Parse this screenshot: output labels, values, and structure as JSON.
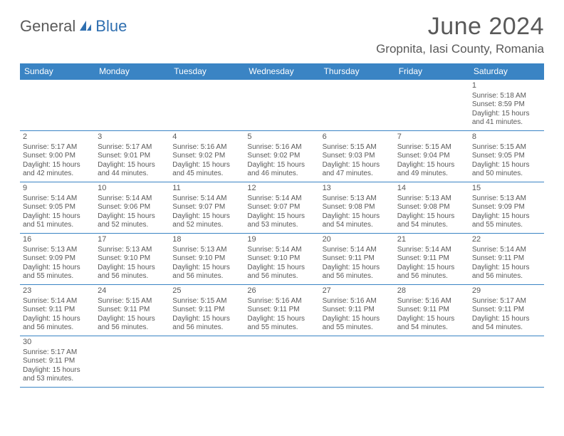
{
  "logo": {
    "text_a": "General",
    "text_b": "Blue"
  },
  "title": "June 2024",
  "location": "Gropnita, Iasi County, Romania",
  "colors": {
    "header_bg": "#3a84c4",
    "header_fg": "#ffffff",
    "text": "#595959",
    "rule": "#3a84c4",
    "logo_gray": "#5a5a5a",
    "logo_blue": "#2f6fb0"
  },
  "day_headers": [
    "Sunday",
    "Monday",
    "Tuesday",
    "Wednesday",
    "Thursday",
    "Friday",
    "Saturday"
  ],
  "weeks": [
    [
      null,
      null,
      null,
      null,
      null,
      null,
      {
        "n": "1",
        "sr": "Sunrise: 5:18 AM",
        "ss": "Sunset: 8:59 PM",
        "dl": "Daylight: 15 hours and 41 minutes."
      }
    ],
    [
      {
        "n": "2",
        "sr": "Sunrise: 5:17 AM",
        "ss": "Sunset: 9:00 PM",
        "dl": "Daylight: 15 hours and 42 minutes."
      },
      {
        "n": "3",
        "sr": "Sunrise: 5:17 AM",
        "ss": "Sunset: 9:01 PM",
        "dl": "Daylight: 15 hours and 44 minutes."
      },
      {
        "n": "4",
        "sr": "Sunrise: 5:16 AM",
        "ss": "Sunset: 9:02 PM",
        "dl": "Daylight: 15 hours and 45 minutes."
      },
      {
        "n": "5",
        "sr": "Sunrise: 5:16 AM",
        "ss": "Sunset: 9:02 PM",
        "dl": "Daylight: 15 hours and 46 minutes."
      },
      {
        "n": "6",
        "sr": "Sunrise: 5:15 AM",
        "ss": "Sunset: 9:03 PM",
        "dl": "Daylight: 15 hours and 47 minutes."
      },
      {
        "n": "7",
        "sr": "Sunrise: 5:15 AM",
        "ss": "Sunset: 9:04 PM",
        "dl": "Daylight: 15 hours and 49 minutes."
      },
      {
        "n": "8",
        "sr": "Sunrise: 5:15 AM",
        "ss": "Sunset: 9:05 PM",
        "dl": "Daylight: 15 hours and 50 minutes."
      }
    ],
    [
      {
        "n": "9",
        "sr": "Sunrise: 5:14 AM",
        "ss": "Sunset: 9:05 PM",
        "dl": "Daylight: 15 hours and 51 minutes."
      },
      {
        "n": "10",
        "sr": "Sunrise: 5:14 AM",
        "ss": "Sunset: 9:06 PM",
        "dl": "Daylight: 15 hours and 52 minutes."
      },
      {
        "n": "11",
        "sr": "Sunrise: 5:14 AM",
        "ss": "Sunset: 9:07 PM",
        "dl": "Daylight: 15 hours and 52 minutes."
      },
      {
        "n": "12",
        "sr": "Sunrise: 5:14 AM",
        "ss": "Sunset: 9:07 PM",
        "dl": "Daylight: 15 hours and 53 minutes."
      },
      {
        "n": "13",
        "sr": "Sunrise: 5:13 AM",
        "ss": "Sunset: 9:08 PM",
        "dl": "Daylight: 15 hours and 54 minutes."
      },
      {
        "n": "14",
        "sr": "Sunrise: 5:13 AM",
        "ss": "Sunset: 9:08 PM",
        "dl": "Daylight: 15 hours and 54 minutes."
      },
      {
        "n": "15",
        "sr": "Sunrise: 5:13 AM",
        "ss": "Sunset: 9:09 PM",
        "dl": "Daylight: 15 hours and 55 minutes."
      }
    ],
    [
      {
        "n": "16",
        "sr": "Sunrise: 5:13 AM",
        "ss": "Sunset: 9:09 PM",
        "dl": "Daylight: 15 hours and 55 minutes."
      },
      {
        "n": "17",
        "sr": "Sunrise: 5:13 AM",
        "ss": "Sunset: 9:10 PM",
        "dl": "Daylight: 15 hours and 56 minutes."
      },
      {
        "n": "18",
        "sr": "Sunrise: 5:13 AM",
        "ss": "Sunset: 9:10 PM",
        "dl": "Daylight: 15 hours and 56 minutes."
      },
      {
        "n": "19",
        "sr": "Sunrise: 5:14 AM",
        "ss": "Sunset: 9:10 PM",
        "dl": "Daylight: 15 hours and 56 minutes."
      },
      {
        "n": "20",
        "sr": "Sunrise: 5:14 AM",
        "ss": "Sunset: 9:11 PM",
        "dl": "Daylight: 15 hours and 56 minutes."
      },
      {
        "n": "21",
        "sr": "Sunrise: 5:14 AM",
        "ss": "Sunset: 9:11 PM",
        "dl": "Daylight: 15 hours and 56 minutes."
      },
      {
        "n": "22",
        "sr": "Sunrise: 5:14 AM",
        "ss": "Sunset: 9:11 PM",
        "dl": "Daylight: 15 hours and 56 minutes."
      }
    ],
    [
      {
        "n": "23",
        "sr": "Sunrise: 5:14 AM",
        "ss": "Sunset: 9:11 PM",
        "dl": "Daylight: 15 hours and 56 minutes."
      },
      {
        "n": "24",
        "sr": "Sunrise: 5:15 AM",
        "ss": "Sunset: 9:11 PM",
        "dl": "Daylight: 15 hours and 56 minutes."
      },
      {
        "n": "25",
        "sr": "Sunrise: 5:15 AM",
        "ss": "Sunset: 9:11 PM",
        "dl": "Daylight: 15 hours and 56 minutes."
      },
      {
        "n": "26",
        "sr": "Sunrise: 5:16 AM",
        "ss": "Sunset: 9:11 PM",
        "dl": "Daylight: 15 hours and 55 minutes."
      },
      {
        "n": "27",
        "sr": "Sunrise: 5:16 AM",
        "ss": "Sunset: 9:11 PM",
        "dl": "Daylight: 15 hours and 55 minutes."
      },
      {
        "n": "28",
        "sr": "Sunrise: 5:16 AM",
        "ss": "Sunset: 9:11 PM",
        "dl": "Daylight: 15 hours and 54 minutes."
      },
      {
        "n": "29",
        "sr": "Sunrise: 5:17 AM",
        "ss": "Sunset: 9:11 PM",
        "dl": "Daylight: 15 hours and 54 minutes."
      }
    ],
    [
      {
        "n": "30",
        "sr": "Sunrise: 5:17 AM",
        "ss": "Sunset: 9:11 PM",
        "dl": "Daylight: 15 hours and 53 minutes."
      },
      null,
      null,
      null,
      null,
      null,
      null
    ]
  ]
}
